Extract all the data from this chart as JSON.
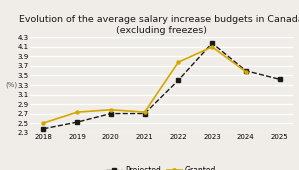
{
  "title_line1": "Evolution of the average salary increase budgets in Canada",
  "title_line2": "(excluding freezes)",
  "ylabel": "(%)",
  "ylim": [
    2.3,
    4.3
  ],
  "yticks": [
    2.3,
    2.5,
    2.7,
    2.9,
    3.1,
    3.3,
    3.5,
    3.7,
    3.9,
    4.1,
    4.3
  ],
  "projected_x": [
    2018,
    2019,
    2020,
    2021,
    2022,
    2023,
    2024,
    2025
  ],
  "projected_y": [
    2.38,
    2.52,
    2.7,
    2.7,
    3.4,
    4.18,
    3.6,
    3.42
  ],
  "granted_x": [
    2018,
    2019,
    2020,
    2021,
    2022,
    2023,
    2024
  ],
  "granted_y": [
    2.5,
    2.73,
    2.78,
    2.73,
    3.78,
    4.1,
    3.58
  ],
  "projected_color": "#1a1a1a",
  "granted_color": "#d4a800",
  "background_color": "#f0ede8",
  "grid_color": "#ffffff",
  "legend_projected": "Projected",
  "legend_granted": "Granted",
  "title_fontsize": 6.8,
  "tick_fontsize": 5.0,
  "label_fontsize": 5.0,
  "legend_fontsize": 5.5,
  "xlim_left": 2017.6,
  "xlim_right": 2025.4,
  "xticks": [
    2018,
    2019,
    2020,
    2021,
    2022,
    2023,
    2024,
    2025
  ]
}
